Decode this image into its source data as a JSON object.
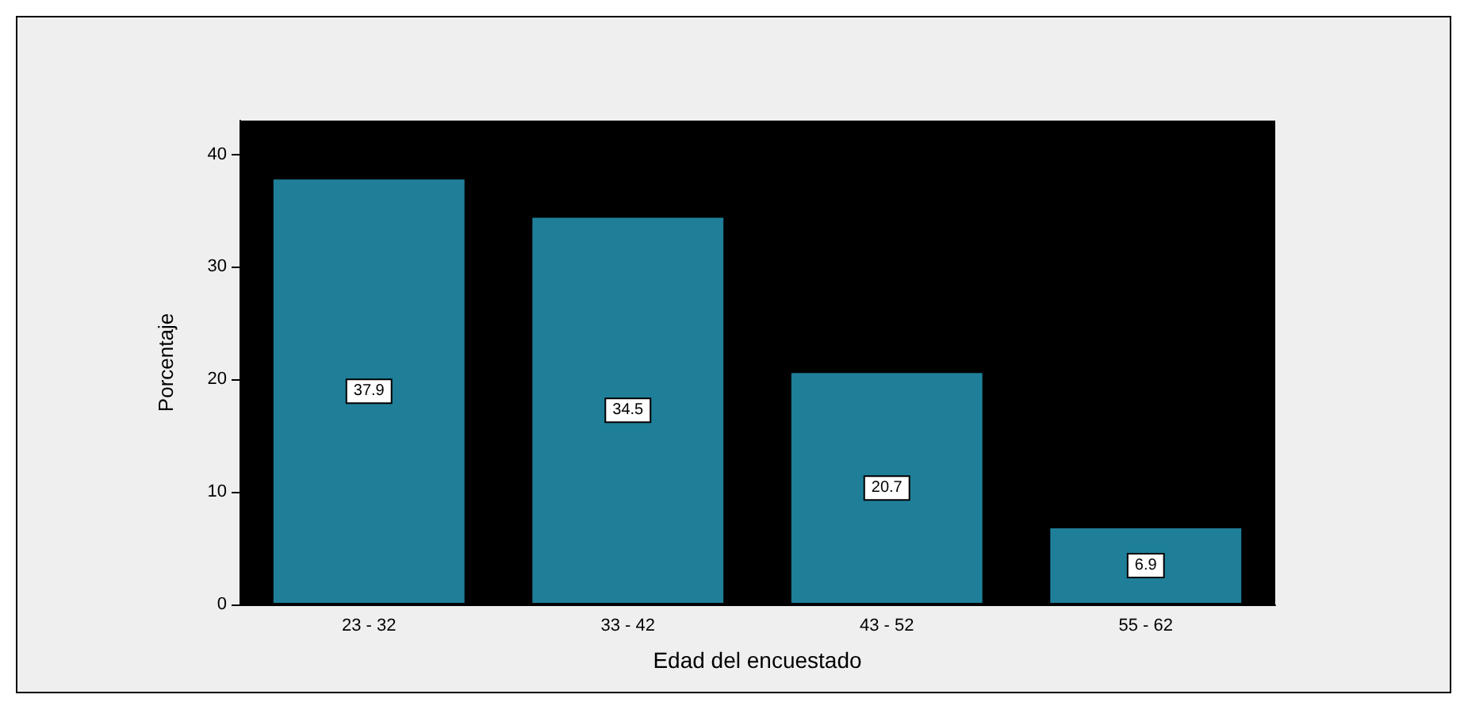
{
  "chart_data": {
    "type": "bar",
    "xlabel": "Edad del encuestado",
    "ylabel": "Porcentaje",
    "categories": [
      "23 - 32",
      "33 - 42",
      "43 - 52",
      "55 - 62"
    ],
    "values": [
      37.9,
      34.5,
      20.7,
      6.9
    ],
    "color": "#1f7f99",
    "ylim": [
      0,
      43
    ],
    "yticks": [
      0,
      10,
      20,
      30,
      40
    ],
    "grid": false,
    "data_labels": true
  }
}
